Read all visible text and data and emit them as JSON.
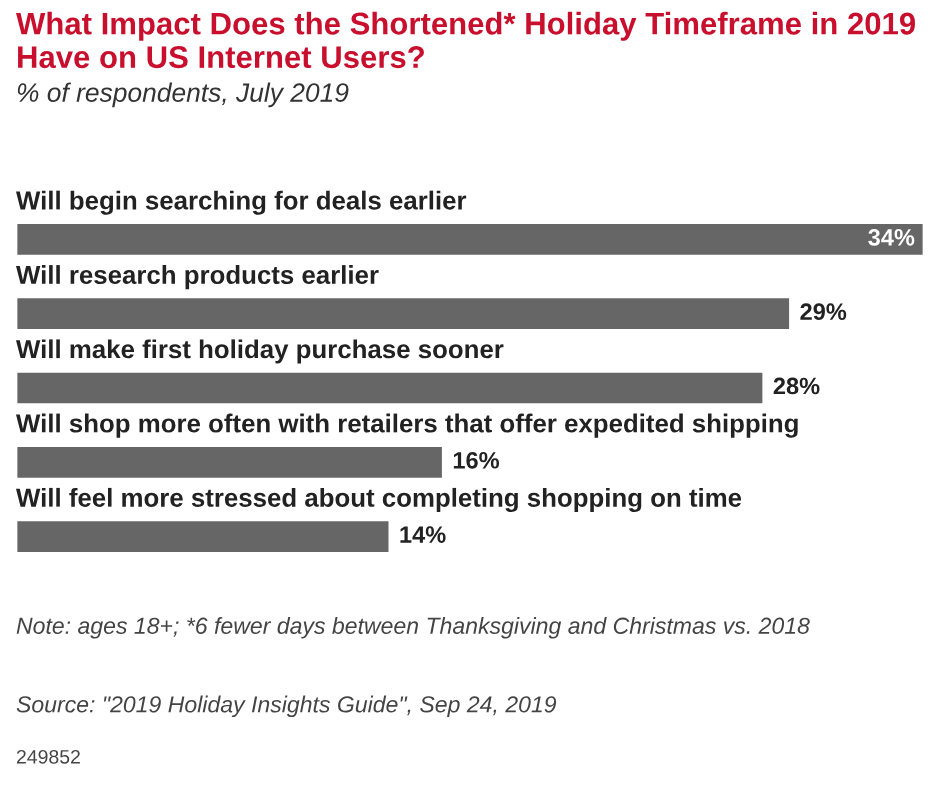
{
  "chart_data": {
    "type": "bar",
    "orientation": "horizontal",
    "title": "What Impact Does the Shortened* Holiday Timeframe in 2019 Have on US Internet Users?",
    "subtitle": "% of respondents, July 2019",
    "categories": [
      "Will begin searching for deals earlier",
      "Will research products earlier",
      "Will make first holiday purchase sooner",
      "Will shop more often with retailers that offer expedited shipping",
      "Will feel more stressed about completing shopping on time"
    ],
    "values": [
      34,
      29,
      28,
      16,
      14
    ],
    "value_labels": [
      "34%",
      "29%",
      "28%",
      "16%",
      "14%"
    ],
    "color": "#666666",
    "annotations": [
      "Note: ages 18+; *6 fewer days between Thanksgiving and Christmas vs. 2018",
      "Source: \"2019 Holiday Insights Guide\", Sep 24, 2019",
      "249852"
    ]
  }
}
